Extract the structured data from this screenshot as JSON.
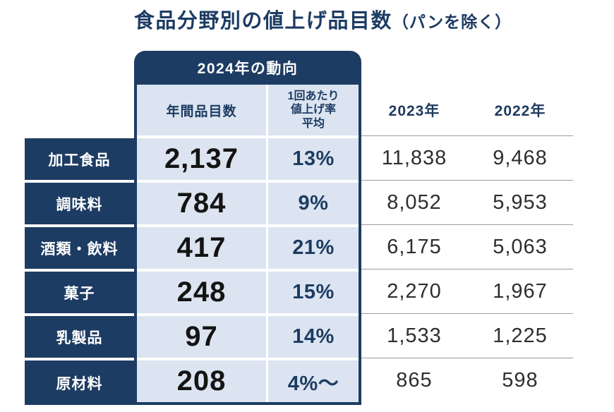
{
  "title": {
    "main": "食品分野別の値上げ品目数",
    "note": "（パンを除く）"
  },
  "banner": {
    "label": "2024年の動向"
  },
  "columns": {
    "annual_items": "年間品目数",
    "rate_line1": "1回あたり",
    "rate_line2": "値上げ率",
    "rate_line3": "平均",
    "y2023": "2023年",
    "y2022": "2022年"
  },
  "rows": [
    {
      "label": "加工食品",
      "items": "2,137",
      "rate": "13%",
      "y2023": "11,838",
      "y2022": "9,468"
    },
    {
      "label": "調味料",
      "items": "784",
      "rate": "9%",
      "y2023": "8,052",
      "y2022": "5,953"
    },
    {
      "label": "酒類・飲料",
      "items": "417",
      "rate": "21%",
      "y2023": "6,175",
      "y2022": "5,063"
    },
    {
      "label": "菓子",
      "items": "248",
      "rate": "15%",
      "y2023": "2,270",
      "y2022": "1,967"
    },
    {
      "label": "乳製品",
      "items": "97",
      "rate": "14%",
      "y2023": "1,533",
      "y2022": "1,225"
    },
    {
      "label": "原材料",
      "items": "208",
      "rate": "4%～",
      "y2023": "865",
      "y2022": "598"
    }
  ],
  "colors": {
    "navy": "#1d3c63",
    "light_blue": "#dbe4f0",
    "grid_gray": "#9c9c9c",
    "number_black": "#141414",
    "year_number_gray": "#2e2e2e",
    "background": "#ffffff"
  },
  "chart_data": {
    "type": "table",
    "title": "食品分野別の値上げ品目数（パンを除く）",
    "group_header": "2024年の動向",
    "columns": [
      "年間品目数",
      "1回あたり値上げ率平均",
      "2023年",
      "2022年"
    ],
    "categories": [
      "加工食品",
      "調味料",
      "酒類・飲料",
      "菓子",
      "乳製品",
      "原材料"
    ],
    "series": [
      {
        "name": "年間品目数（2024年）",
        "values": [
          2137,
          784,
          417,
          248,
          97,
          208
        ]
      },
      {
        "name": "1回あたり値上げ率平均",
        "values": [
          "13%",
          "9%",
          "21%",
          "15%",
          "14%",
          "4%～"
        ]
      },
      {
        "name": "2023年",
        "values": [
          11838,
          8052,
          6175,
          2270,
          1533,
          865
        ]
      },
      {
        "name": "2022年",
        "values": [
          9468,
          5953,
          5063,
          1967,
          1225,
          598
        ]
      }
    ]
  }
}
